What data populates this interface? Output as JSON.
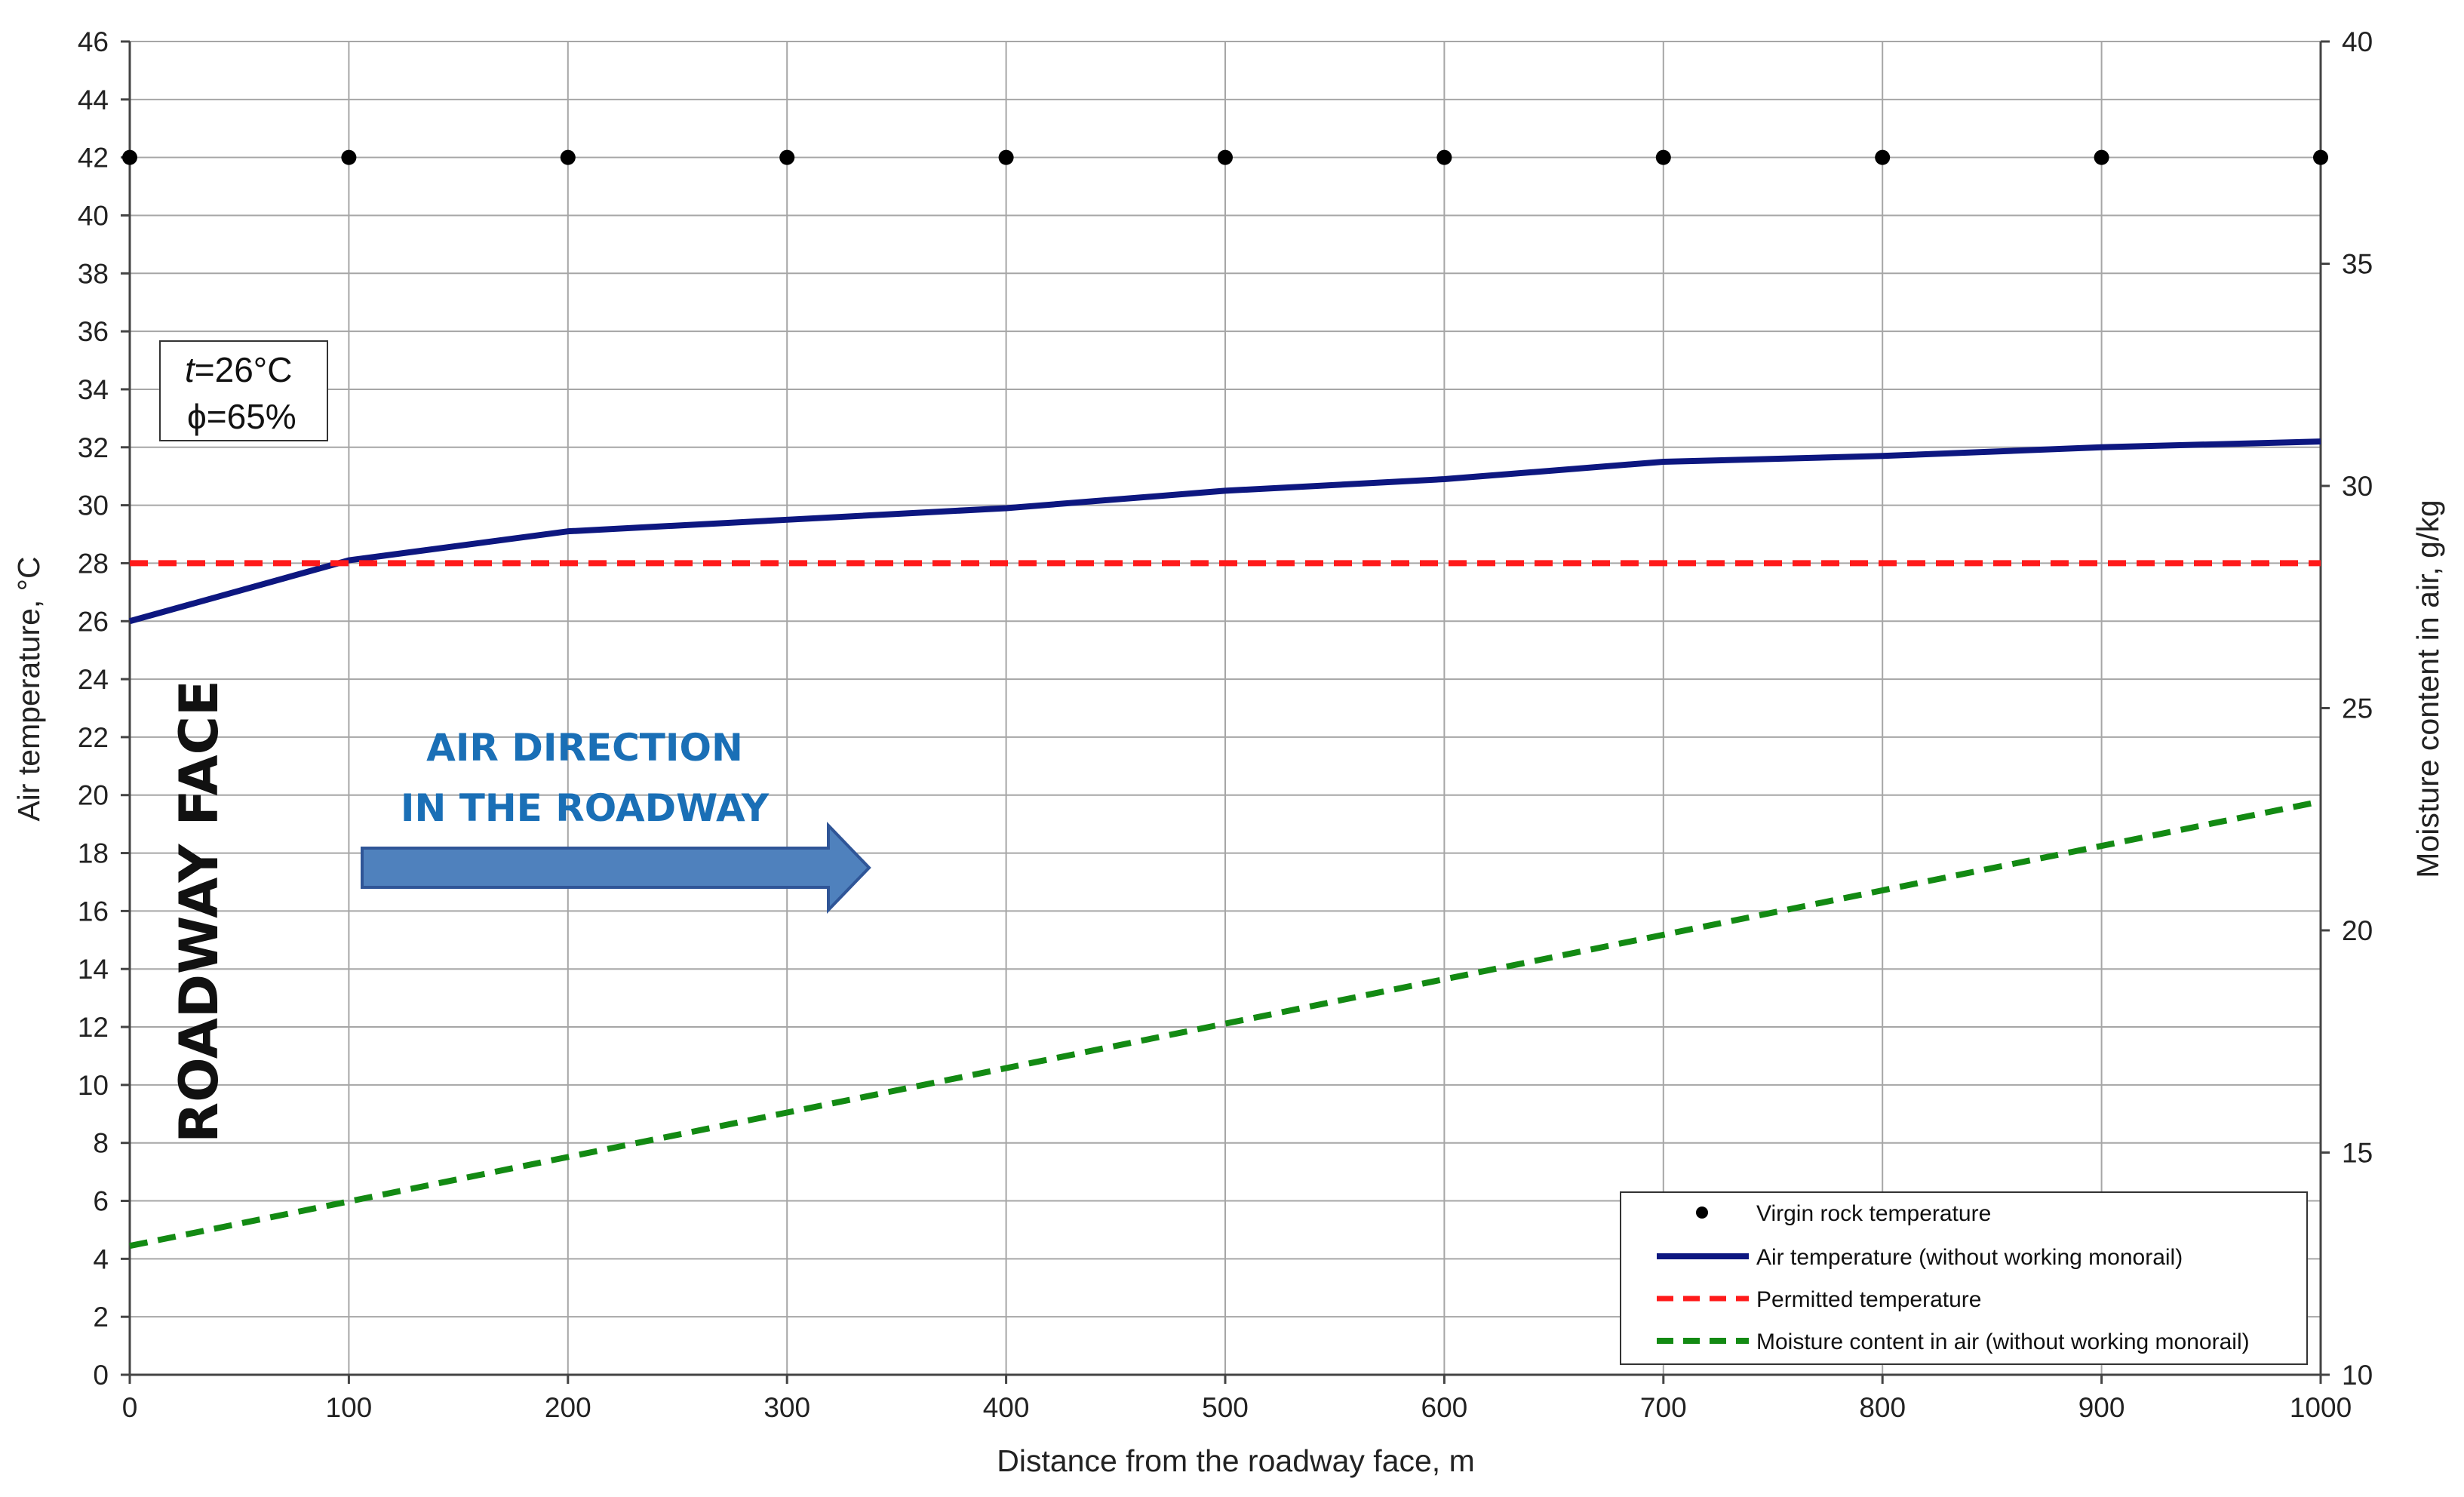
{
  "chart_data": {
    "type": "line",
    "xlabel": "Distance from the roadway face, m",
    "ylabel": "Air temperature, °C",
    "y2label": "Moisture content in air, g/kg",
    "xlim": [
      0,
      1000
    ],
    "ylim": [
      0,
      46
    ],
    "y2lim": [
      10,
      40
    ],
    "xticks": [
      "0",
      "100",
      "200",
      "300",
      "400",
      "500",
      "600",
      "700",
      "800",
      "900",
      "1000"
    ],
    "yticks": [
      "0",
      "2",
      "4",
      "6",
      "8",
      "10",
      "12",
      "14",
      "16",
      "18",
      "20",
      "22",
      "24",
      "26",
      "28",
      "30",
      "32",
      "34",
      "36",
      "38",
      "40",
      "42",
      "44",
      "46"
    ],
    "y2ticks": [
      "10",
      "15",
      "20",
      "25",
      "30",
      "35",
      "40"
    ],
    "grid": true,
    "legend_position": "bottom-right",
    "series": [
      {
        "name": "Virgin rock temperature",
        "axis": "left",
        "style": "markers",
        "color": "#000000",
        "x": [
          0,
          100,
          200,
          300,
          400,
          500,
          600,
          700,
          800,
          900,
          1000
        ],
        "y": [
          42,
          42,
          42,
          42,
          42,
          42,
          42,
          42,
          42,
          42,
          42
        ]
      },
      {
        "name": "Air temperature (without working monorail)",
        "axis": "left",
        "style": "solid",
        "color": "#0d1780",
        "x": [
          0,
          100,
          200,
          300,
          400,
          500,
          600,
          700,
          800,
          900,
          1000
        ],
        "y": [
          26.0,
          28.1,
          29.1,
          29.5,
          29.9,
          30.5,
          30.9,
          31.5,
          31.7,
          32.0,
          32.2
        ]
      },
      {
        "name": "Permitted temperature",
        "axis": "left",
        "style": "dashed",
        "color": "#ff1a1a",
        "x": [
          0,
          1000
        ],
        "y": [
          28,
          28
        ]
      },
      {
        "name": "Moisture content in air (without working monorail)",
        "axis": "right",
        "style": "dashed",
        "color": "#138a13",
        "x": [
          0,
          100,
          200,
          300,
          400,
          500,
          600,
          700,
          800,
          900,
          1000
        ],
        "y": [
          12.9,
          13.9,
          14.9,
          15.9,
          16.9,
          17.9,
          18.9,
          19.9,
          20.9,
          21.9,
          22.9
        ]
      }
    ],
    "annotations": {
      "conditions": [
        "=26°C",
        "ϕ=65%"
      ],
      "conditions_symbol": "t",
      "roadway_face": "ROADWAY FACE",
      "air_direction": [
        "AIR DIRECTION",
        "IN THE ROADWAY"
      ]
    }
  },
  "colors": {
    "arrow_fill": "#4f81bd",
    "arrow_stroke": "#2f5597",
    "air_direction_text": "#1a6fb6",
    "grid": "#a6a6a6"
  }
}
